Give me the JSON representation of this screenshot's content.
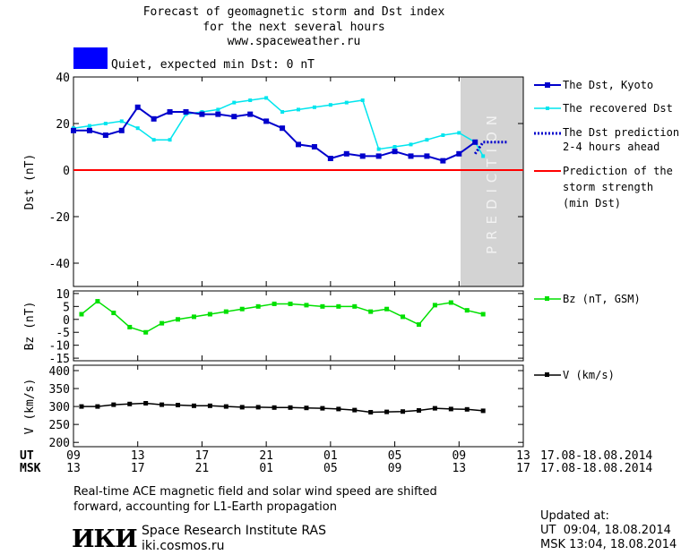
{
  "header": {
    "title_line1": "Forecast of geomagnetic storm and Dst index",
    "title_line2": "for the next several hours",
    "url": "www.spaceweather.ru",
    "status_text": "Quiet, expected min Dst: 0 nT",
    "status_color": "#0000ff"
  },
  "prediction_label": "PREDICTION",
  "colors": {
    "dst": "#0000cc",
    "recovered": "#00e5ee",
    "prediction_line": "#0000cc",
    "storm_line": "#ff0000",
    "bz": "#00e000",
    "v": "#000000",
    "prediction_band": "#d3d3d3"
  },
  "chart_data": [
    {
      "type": "line",
      "ylabel": "Dst (nT)",
      "ylim": [
        -50,
        40
      ],
      "yticks": [
        40,
        20,
        0,
        -20,
        -40
      ],
      "xlim": [
        9,
        37
      ],
      "prediction_band": [
        34,
        37.4
      ],
      "series": [
        {
          "name": "The Dst, Kyoto",
          "x": [
            9,
            10,
            11,
            12,
            13,
            14,
            15,
            16,
            17,
            18,
            19,
            20,
            21,
            22,
            23,
            24,
            25,
            26,
            27,
            28,
            29,
            30,
            31,
            32,
            33,
            34
          ],
          "values": [
            17,
            17,
            15,
            17,
            27,
            22,
            25,
            25,
            24,
            24,
            23,
            24,
            21,
            18,
            11,
            10,
            5,
            7,
            6,
            6,
            8,
            6,
            6,
            4,
            7,
            12
          ]
        },
        {
          "name": "The recovered Dst",
          "x": [
            9,
            10,
            11,
            12,
            13,
            14,
            15,
            16,
            17,
            18,
            19,
            20,
            21,
            22,
            23,
            24,
            25,
            26,
            27,
            28,
            29,
            30,
            31,
            32,
            33,
            34,
            34.5
          ],
          "values": [
            18,
            19,
            20,
            21,
            18,
            13,
            13,
            24,
            25,
            26,
            29,
            30,
            31,
            25,
            26,
            27,
            28,
            29,
            30,
            9,
            10,
            11,
            13,
            15,
            16,
            12,
            6
          ]
        },
        {
          "name": "The Dst prediction 2-4 hours ahead",
          "x": [
            34,
            34.5,
            35,
            35.5,
            36
          ],
          "values": [
            7,
            12,
            12,
            12,
            12
          ]
        },
        {
          "name": "Prediction of the storm strength (min Dst)",
          "x": [
            9,
            37
          ],
          "values": [
            0,
            0
          ]
        }
      ]
    },
    {
      "type": "line",
      "ylabel": "Bz (nT)",
      "ylim": [
        -16,
        11
      ],
      "yticks": [
        10,
        5,
        0,
        -5,
        -10,
        -15
      ],
      "xlim": [
        9,
        37
      ],
      "series": [
        {
          "name": "Bz (nT, GSM)",
          "x": [
            9.5,
            10.5,
            11.5,
            12.5,
            13.5,
            14.5,
            15.5,
            16.5,
            17.5,
            18.5,
            19.5,
            20.5,
            21.5,
            22.5,
            23.5,
            24.5,
            25.5,
            26.5,
            27.5,
            28.5,
            29.5,
            30.5,
            31.5,
            32.5,
            33.5,
            34.5
          ],
          "values": [
            2,
            7,
            2.5,
            -3,
            -5,
            -1.5,
            0,
            1,
            2,
            3,
            4,
            5,
            6,
            6,
            5.5,
            5,
            5,
            5,
            3,
            4,
            1,
            -2,
            5.5,
            6.5,
            3.5,
            2
          ]
        }
      ]
    },
    {
      "type": "line",
      "ylabel": "V (km/s)",
      "ylim": [
        188,
        415
      ],
      "yticks": [
        400,
        350,
        300,
        250,
        200
      ],
      "xlim": [
        9,
        37
      ],
      "series": [
        {
          "name": "V (km/s)",
          "x": [
            9.5,
            10.5,
            11.5,
            12.5,
            13.5,
            14.5,
            15.5,
            16.5,
            17.5,
            18.5,
            19.5,
            20.5,
            21.5,
            22.5,
            23.5,
            24.5,
            25.5,
            26.5,
            27.5,
            28.5,
            29.5,
            30.5,
            31.5,
            32.5,
            33.5,
            34.5
          ],
          "values": [
            300,
            300,
            305,
            307,
            309,
            305,
            304,
            302,
            302,
            300,
            298,
            298,
            297,
            297,
            296,
            295,
            293,
            290,
            284,
            285,
            286,
            289,
            295,
            293,
            292,
            288
          ]
        }
      ]
    }
  ],
  "axis": {
    "ut_label": "UT",
    "msk_label": "MSK",
    "ut_ticks": [
      "09",
      "13",
      "17",
      "21",
      "01",
      "05",
      "09",
      "13"
    ],
    "msk_ticks": [
      "13",
      "17",
      "21",
      "01",
      "05",
      "09",
      "13",
      "17"
    ],
    "tick_x": [
      9,
      13,
      17,
      21,
      25,
      29,
      33,
      37
    ],
    "date_range_ut": "17.08-18.08.2014",
    "date_range_msk": "17.08-18.08.2014"
  },
  "legend": {
    "dst": "The Dst, Kyoto",
    "recovered": "The recovered Dst",
    "prediction_l1": "The Dst prediction",
    "prediction_l2": "2-4 hours ahead",
    "storm_l1": "Prediction of the",
    "storm_l2": "storm strength",
    "storm_l3": "(min Dst)",
    "bz": "Bz (nT, GSM)",
    "v": "V (km/s)"
  },
  "footer": {
    "note_line1": "Real-time ACE magnetic field and solar wind speed are shifted",
    "note_line2": "forward, accounting for L1-Earth propagation",
    "logo_text": "ИКИ",
    "org_name": "Space Research Institute RAS",
    "org_url": "iki.cosmos.ru",
    "updated_label": "Updated at:",
    "updated_ut": "UT  09:04, 18.08.2014",
    "updated_msk": "MSK 13:04, 18.08.2014"
  }
}
